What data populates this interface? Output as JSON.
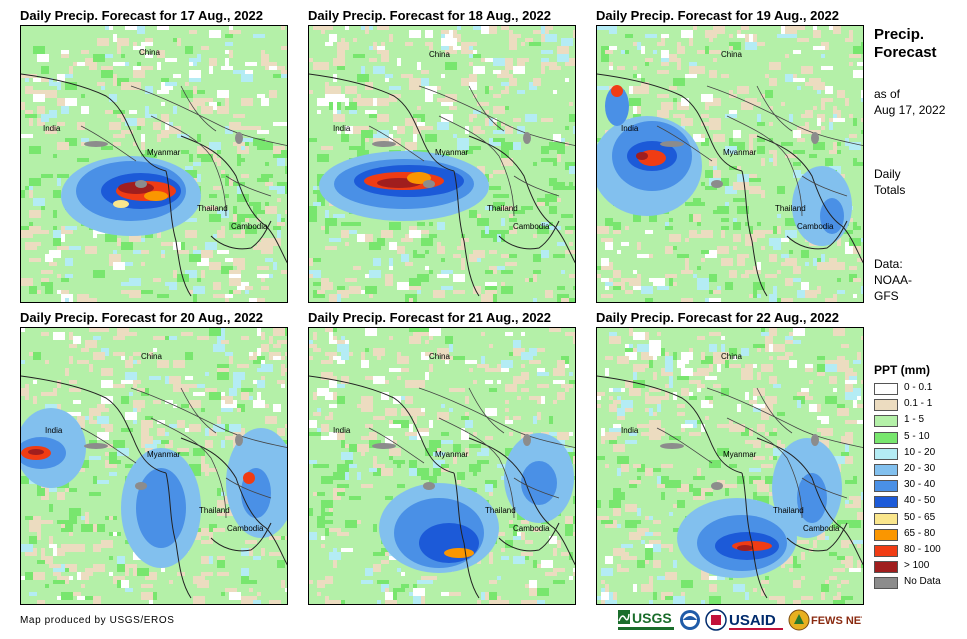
{
  "panels": [
    {
      "title": "Daily Precip. Forecast for 17 Aug., 2022"
    },
    {
      "title": "Daily Precip. Forecast for 18 Aug., 2022"
    },
    {
      "title": "Daily Precip. Forecast for 19 Aug., 2022"
    },
    {
      "title": "Daily Precip. Forecast for 20 Aug., 2022"
    },
    {
      "title": "Daily Precip. Forecast for 21 Aug., 2022"
    },
    {
      "title": "Daily Precip. Forecast for 22 Aug., 2022"
    }
  ],
  "place_labels": {
    "china": "China",
    "india": "India",
    "myanmar": "Myanmar",
    "thailand": "Thailand",
    "cambodia": "Cambodia"
  },
  "sidebar": {
    "title_line1": "Precip.",
    "title_line2": "Forecast",
    "asof_line1": "as of",
    "asof_line2": "Aug 17, 2022",
    "totals_line1": "Daily",
    "totals_line2": "Totals",
    "data_line1": "Data:",
    "data_line2": "NOAA-",
    "data_line3": "GFS"
  },
  "legend": {
    "title": "PPT (mm)",
    "items": [
      {
        "label": "0 - 0.1",
        "color": "#ffffff"
      },
      {
        "label": "0.1 - 1",
        "color": "#ecdcc0"
      },
      {
        "label": "1 - 5",
        "color": "#b4f0a8"
      },
      {
        "label": "5 - 10",
        "color": "#78e66e"
      },
      {
        "label": "10 - 20",
        "color": "#b4ecf4"
      },
      {
        "label": "20 - 30",
        "color": "#82c0ee"
      },
      {
        "label": "30 - 40",
        "color": "#4a90e6"
      },
      {
        "label": "40 - 50",
        "color": "#1c5ad8"
      },
      {
        "label": "50 - 65",
        "color": "#fae68c"
      },
      {
        "label": "65 - 80",
        "color": "#fa9600"
      },
      {
        "label": "80 - 100",
        "color": "#f03c14"
      },
      {
        "label": "> 100",
        "color": "#a01e1e"
      },
      {
        "label": "No Data",
        "color": "#8c8c8c"
      }
    ]
  },
  "credit": "Map produced by USGS/EROS",
  "logos": {
    "usgs": "USGS",
    "usaid": "USAID",
    "fewsnet": "FEWS NET"
  }
}
